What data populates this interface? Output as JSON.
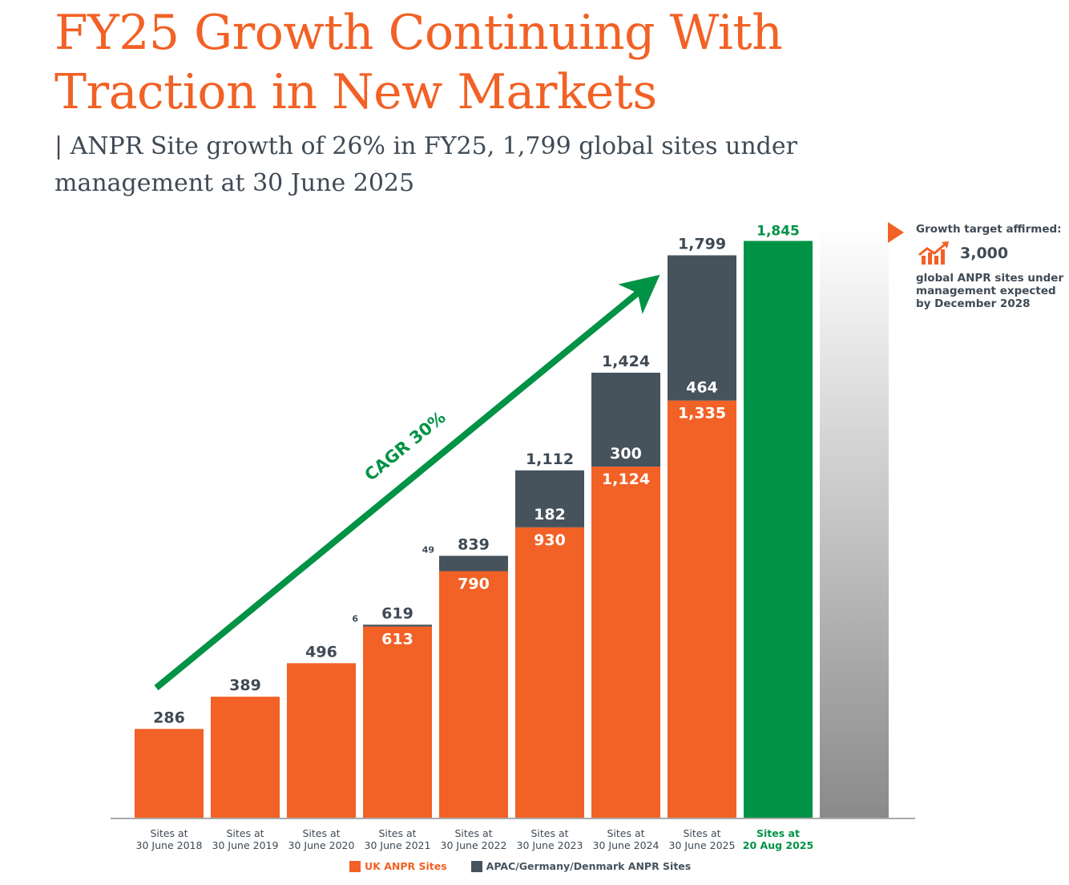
{
  "header": {
    "title_line1": "FY25 Growth Continuing With",
    "title_line2": "Traction in New Markets",
    "subtitle": "| ANPR Site growth of 26% in FY25, 1,799 global sites under management at 30 June 2025"
  },
  "colors": {
    "uk": "#f26125",
    "apac": "#46535d",
    "latest": "#009245",
    "target_bar_top": "#ffffff",
    "target_bar_bottom": "#8a8a8a",
    "label_dark": "#3f4a55",
    "axis": "#aaaaaa"
  },
  "target_panel": {
    "heading": "Growth target affirmed:",
    "icon": "growth-chart-icon",
    "value": "3,000",
    "description": "global ANPR sites under management expected by December 2028"
  },
  "legend": {
    "uk_label": "UK ANPR Sites",
    "apac_label": "APAC/Germany/Denmark ANPR Sites"
  },
  "chart_data": {
    "type": "bar",
    "stacked": true,
    "title": "ANPR sites under management",
    "xlabel": "",
    "ylabel": "",
    "ylim": [
      0,
      2000
    ],
    "grid": false,
    "legend_position": "bottom",
    "categories": [
      [
        "Sites at",
        "30 June 2018"
      ],
      [
        "Sites at",
        "30 June 2019"
      ],
      [
        "Sites at",
        "30 June 2020"
      ],
      [
        "Sites at",
        "30 June 2021"
      ],
      [
        "Sites at",
        "30 June 2022"
      ],
      [
        "Sites at",
        "30 June 2023"
      ],
      [
        "Sites at",
        "30 June 2024"
      ],
      [
        "Sites at",
        "30 June 2025"
      ],
      [
        "Sites at",
        "20 Aug 2025"
      ]
    ],
    "series": [
      {
        "name": "UK ANPR Sites",
        "values": [
          286,
          389,
          496,
          613,
          790,
          930,
          1124,
          1335,
          null
        ]
      },
      {
        "name": "APAC/Germany/Denmark ANPR Sites",
        "values": [
          0,
          0,
          0,
          6,
          49,
          182,
          300,
          464,
          null
        ]
      }
    ],
    "totals": [
      286,
      389,
      496,
      619,
      839,
      1112,
      1424,
      1799,
      1845
    ],
    "total_labels": [
      "286",
      "389",
      "496",
      "619",
      "839",
      "1,112",
      "1,424",
      "1,799",
      "1,845"
    ],
    "uk_labels": [
      null,
      null,
      null,
      "613",
      "790",
      "930",
      "1,124",
      "1,335",
      null
    ],
    "apac_labels": [
      null,
      null,
      null,
      "6",
      "49",
      "182",
      "300",
      "464",
      null
    ],
    "apac_label_outside": [
      false,
      false,
      false,
      true,
      true,
      false,
      false,
      false,
      false
    ],
    "highlight_last": {
      "category_index": 8,
      "value": 1845,
      "label": "1,845",
      "color": "green"
    },
    "target_bar": {
      "label": "Growth target",
      "value": 3000,
      "style": "gradient"
    },
    "annotation": {
      "text": "CAGR 30%",
      "type": "arrow",
      "from_category": 0,
      "to_category": 7
    }
  }
}
